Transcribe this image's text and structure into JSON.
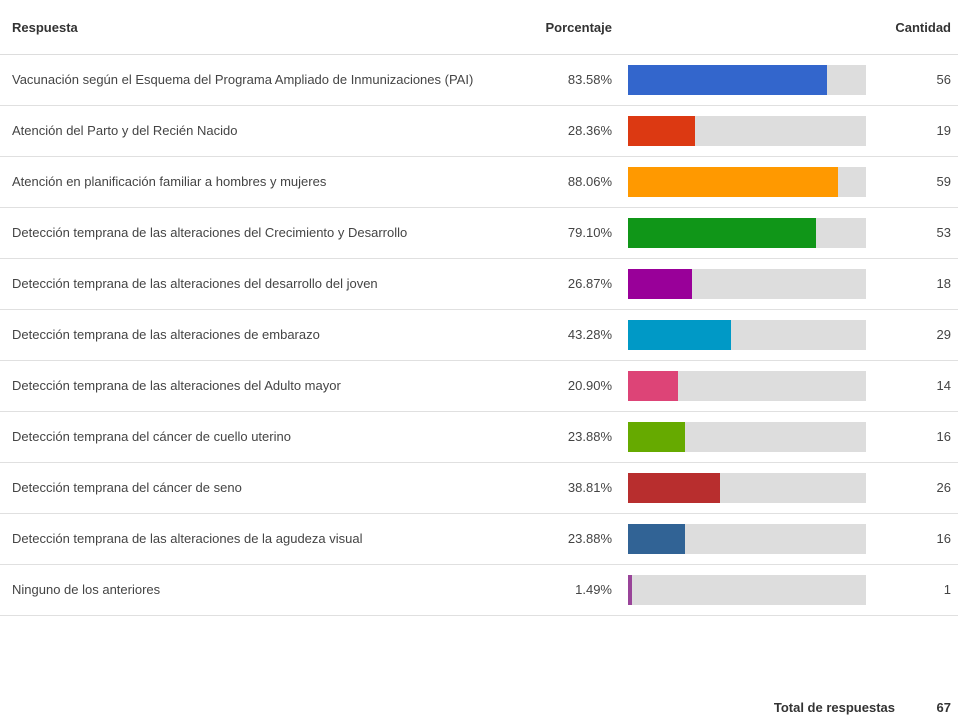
{
  "header": {
    "answer": "Respuesta",
    "percent": "Porcentaje",
    "count": "Cantidad"
  },
  "rows": [
    {
      "label": "Vacunación según el Esquema del Programa Ampliado de Inmunizaciones (PAI)",
      "percent": 83.58,
      "percent_label": "83.58%",
      "count": 56,
      "color": "#3366cc"
    },
    {
      "label": "Atención del Parto y del Recién Nacido",
      "percent": 28.36,
      "percent_label": "28.36%",
      "count": 19,
      "color": "#dc3912"
    },
    {
      "label": "Atención en planificación familiar a hombres y mujeres",
      "percent": 88.06,
      "percent_label": "88.06%",
      "count": 59,
      "color": "#ff9900"
    },
    {
      "label": "Detección temprana de las alteraciones del Crecimiento y Desarrollo",
      "percent": 79.1,
      "percent_label": "79.10%",
      "count": 53,
      "color": "#109618"
    },
    {
      "label": "Detección temprana de las alteraciones del desarrollo del joven",
      "percent": 26.87,
      "percent_label": "26.87%",
      "count": 18,
      "color": "#990099"
    },
    {
      "label": "Detección temprana de las alteraciones de embarazo",
      "percent": 43.28,
      "percent_label": "43.28%",
      "count": 29,
      "color": "#0099c6"
    },
    {
      "label": "Detección temprana de las alteraciones del Adulto mayor",
      "percent": 20.9,
      "percent_label": "20.90%",
      "count": 14,
      "color": "#dd4477"
    },
    {
      "label": "Detección temprana del cáncer de cuello uterino",
      "percent": 23.88,
      "percent_label": "23.88%",
      "count": 16,
      "color": "#66aa00"
    },
    {
      "label": "Detección temprana del cáncer de seno",
      "percent": 38.81,
      "percent_label": "38.81%",
      "count": 26,
      "color": "#b82e2e"
    },
    {
      "label": "Detección temprana de las alteraciones de la agudeza visual",
      "percent": 23.88,
      "percent_label": "23.88%",
      "count": 16,
      "color": "#316395"
    },
    {
      "label": "Ninguno de los anteriores",
      "percent": 1.49,
      "percent_label": "1.49%",
      "count": 1,
      "color": "#994499"
    }
  ],
  "total": {
    "label": "Total de respuestas",
    "value": 67
  }
}
